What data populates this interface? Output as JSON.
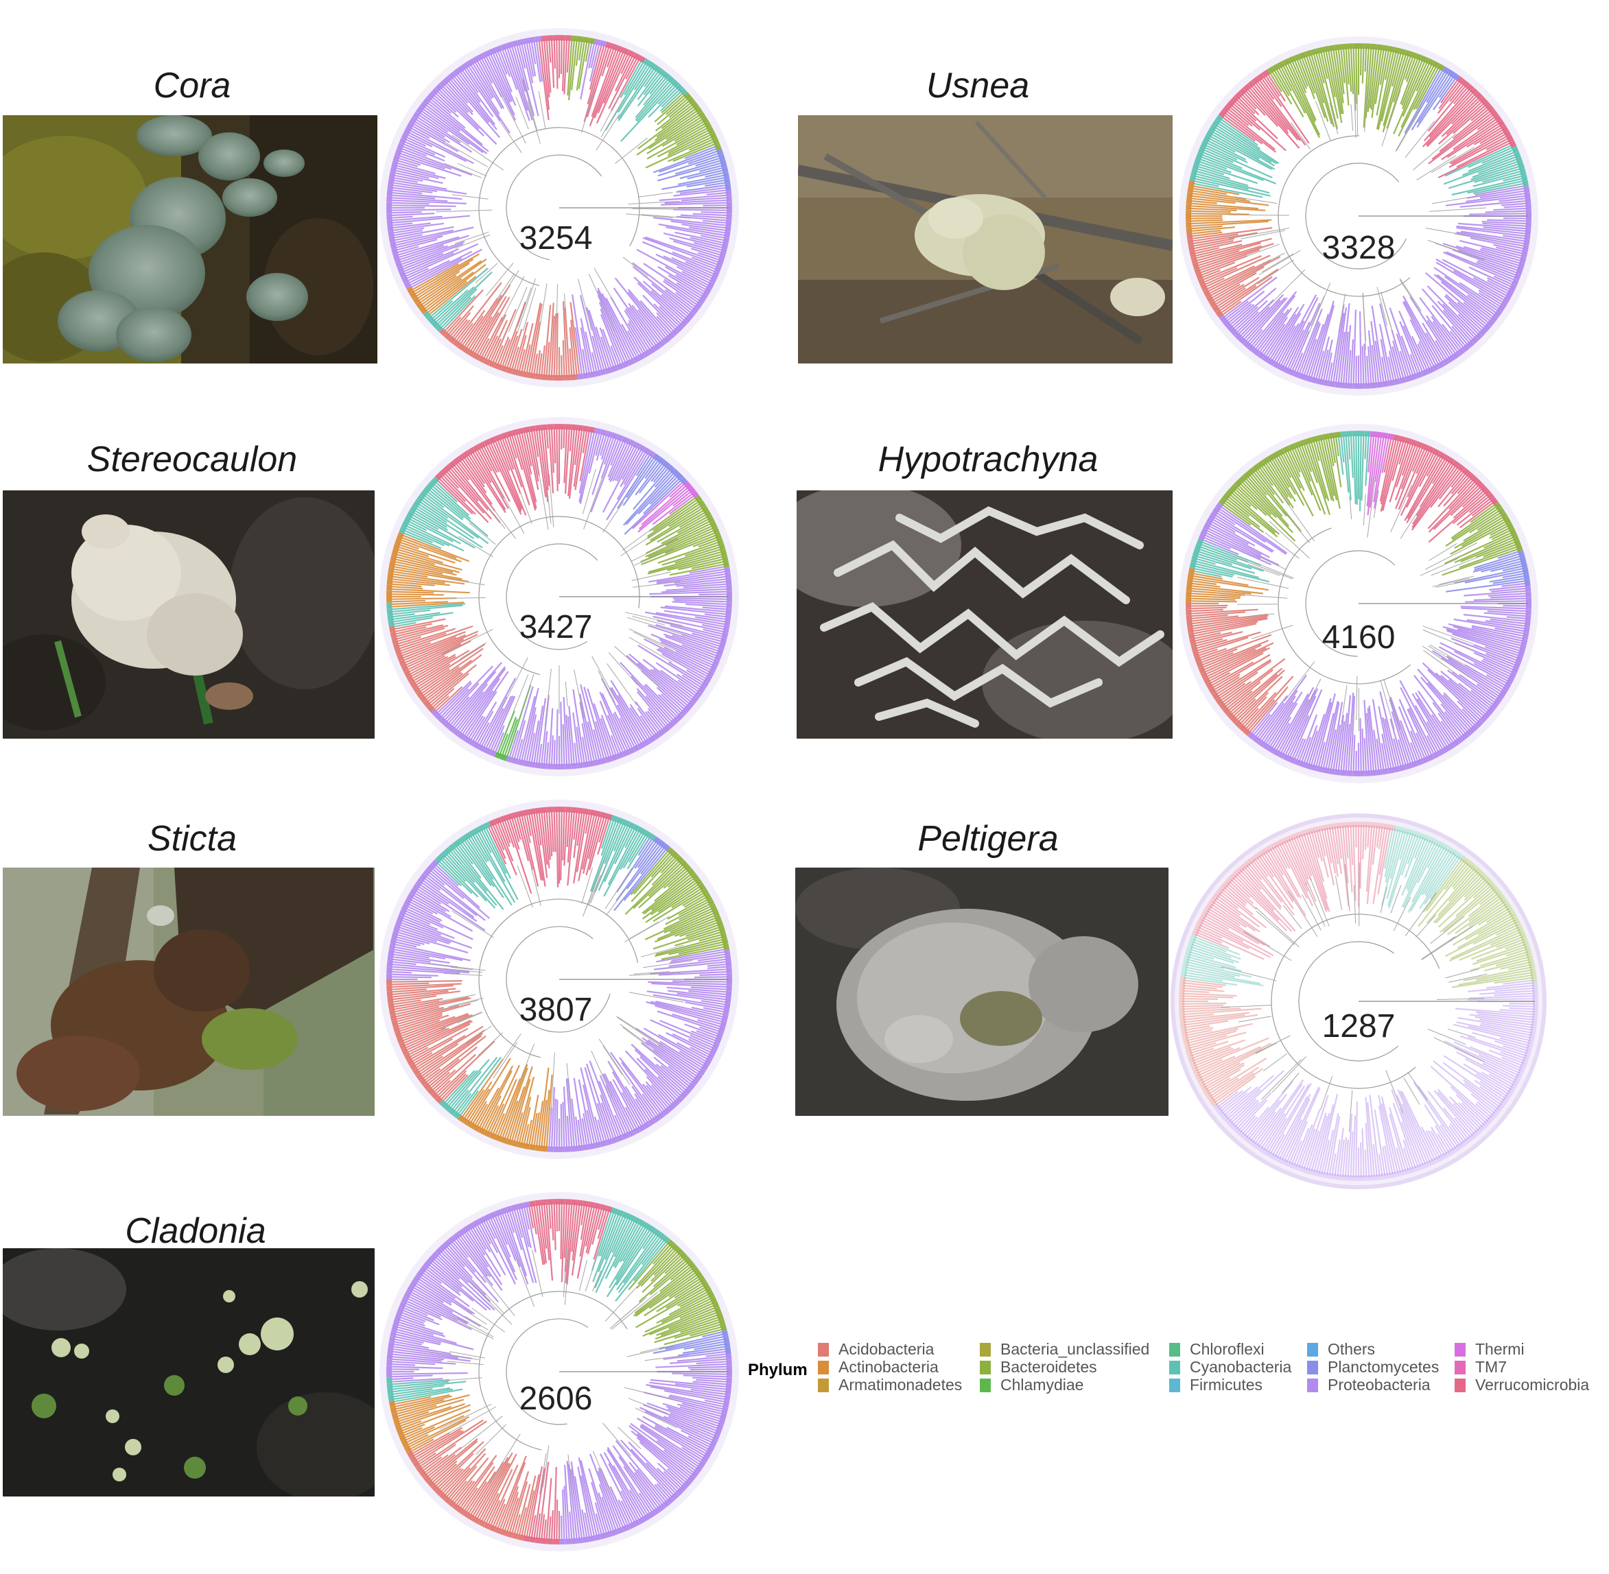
{
  "panels": [
    {
      "name": "Cora",
      "count": "3254"
    },
    {
      "name": "Usnea",
      "count": "3328"
    },
    {
      "name": "Stereocaulon",
      "count": "3427"
    },
    {
      "name": "Hypotrachyna",
      "count": "4160"
    },
    {
      "name": "Sticta",
      "count": "3807"
    },
    {
      "name": "Peltigera",
      "count": "1287"
    },
    {
      "name": "Cladonia",
      "count": "2606"
    }
  ],
  "legend": {
    "title": "Phylum",
    "items": [
      {
        "label": "Acidobacteria",
        "color": "#E07A74"
      },
      {
        "label": "Actinobacteria",
        "color": "#D98D3A"
      },
      {
        "label": "Armatimonadetes",
        "color": "#C39A35"
      },
      {
        "label": "Bacteria_unclassified",
        "color": "#A9A63A"
      },
      {
        "label": "Bacteroidetes",
        "color": "#8DB03F"
      },
      {
        "label": "Chlamydiae",
        "color": "#5DB84C"
      },
      {
        "label": "Chloroflexi",
        "color": "#58BC86"
      },
      {
        "label": "Cyanobacteria",
        "color": "#5EC2B2"
      },
      {
        "label": "Firmicutes",
        "color": "#5DB8D3"
      },
      {
        "label": "Others",
        "color": "#5AA8E6"
      },
      {
        "label": "Planctomycetes",
        "color": "#8A8EEB"
      },
      {
        "label": "Proteobacteria",
        "color": "#B28AEE"
      },
      {
        "label": "Thermi",
        "color": "#D76FE0"
      },
      {
        "label": "TM7",
        "color": "#E469B8"
      },
      {
        "label": "Verrucomicrobia",
        "color": "#E36987"
      }
    ]
  }
}
